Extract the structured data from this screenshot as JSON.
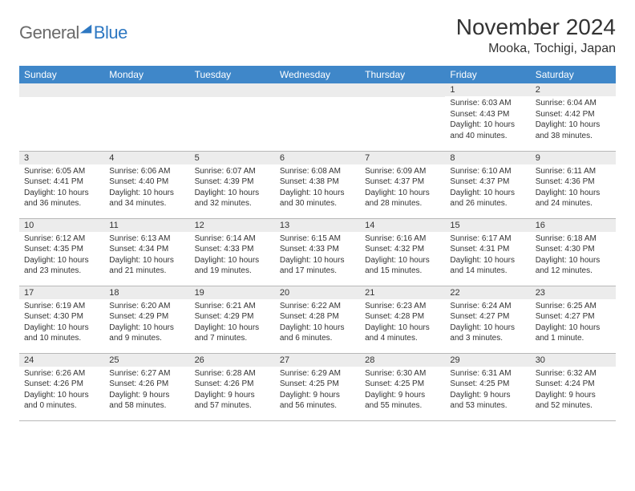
{
  "logo": {
    "part1": "General",
    "part2": "Blue"
  },
  "title": "November 2024",
  "location": "Mooka, Tochigi, Japan",
  "colors": {
    "header_bg": "#3f87c9",
    "header_text": "#ffffff",
    "daynum_bg": "#ececec",
    "text": "#333333",
    "logo_gray": "#6a6a6a",
    "logo_blue": "#2e78c2",
    "border": "#b8b8b8"
  },
  "day_headers": [
    "Sunday",
    "Monday",
    "Tuesday",
    "Wednesday",
    "Thursday",
    "Friday",
    "Saturday"
  ],
  "weeks": [
    [
      {
        "n": "",
        "sr": "",
        "ss": "",
        "dl": ""
      },
      {
        "n": "",
        "sr": "",
        "ss": "",
        "dl": ""
      },
      {
        "n": "",
        "sr": "",
        "ss": "",
        "dl": ""
      },
      {
        "n": "",
        "sr": "",
        "ss": "",
        "dl": ""
      },
      {
        "n": "",
        "sr": "",
        "ss": "",
        "dl": ""
      },
      {
        "n": "1",
        "sr": "Sunrise: 6:03 AM",
        "ss": "Sunset: 4:43 PM",
        "dl": "Daylight: 10 hours and 40 minutes."
      },
      {
        "n": "2",
        "sr": "Sunrise: 6:04 AM",
        "ss": "Sunset: 4:42 PM",
        "dl": "Daylight: 10 hours and 38 minutes."
      }
    ],
    [
      {
        "n": "3",
        "sr": "Sunrise: 6:05 AM",
        "ss": "Sunset: 4:41 PM",
        "dl": "Daylight: 10 hours and 36 minutes."
      },
      {
        "n": "4",
        "sr": "Sunrise: 6:06 AM",
        "ss": "Sunset: 4:40 PM",
        "dl": "Daylight: 10 hours and 34 minutes."
      },
      {
        "n": "5",
        "sr": "Sunrise: 6:07 AM",
        "ss": "Sunset: 4:39 PM",
        "dl": "Daylight: 10 hours and 32 minutes."
      },
      {
        "n": "6",
        "sr": "Sunrise: 6:08 AM",
        "ss": "Sunset: 4:38 PM",
        "dl": "Daylight: 10 hours and 30 minutes."
      },
      {
        "n": "7",
        "sr": "Sunrise: 6:09 AM",
        "ss": "Sunset: 4:37 PM",
        "dl": "Daylight: 10 hours and 28 minutes."
      },
      {
        "n": "8",
        "sr": "Sunrise: 6:10 AM",
        "ss": "Sunset: 4:37 PM",
        "dl": "Daylight: 10 hours and 26 minutes."
      },
      {
        "n": "9",
        "sr": "Sunrise: 6:11 AM",
        "ss": "Sunset: 4:36 PM",
        "dl": "Daylight: 10 hours and 24 minutes."
      }
    ],
    [
      {
        "n": "10",
        "sr": "Sunrise: 6:12 AM",
        "ss": "Sunset: 4:35 PM",
        "dl": "Daylight: 10 hours and 23 minutes."
      },
      {
        "n": "11",
        "sr": "Sunrise: 6:13 AM",
        "ss": "Sunset: 4:34 PM",
        "dl": "Daylight: 10 hours and 21 minutes."
      },
      {
        "n": "12",
        "sr": "Sunrise: 6:14 AM",
        "ss": "Sunset: 4:33 PM",
        "dl": "Daylight: 10 hours and 19 minutes."
      },
      {
        "n": "13",
        "sr": "Sunrise: 6:15 AM",
        "ss": "Sunset: 4:33 PM",
        "dl": "Daylight: 10 hours and 17 minutes."
      },
      {
        "n": "14",
        "sr": "Sunrise: 6:16 AM",
        "ss": "Sunset: 4:32 PM",
        "dl": "Daylight: 10 hours and 15 minutes."
      },
      {
        "n": "15",
        "sr": "Sunrise: 6:17 AM",
        "ss": "Sunset: 4:31 PM",
        "dl": "Daylight: 10 hours and 14 minutes."
      },
      {
        "n": "16",
        "sr": "Sunrise: 6:18 AM",
        "ss": "Sunset: 4:30 PM",
        "dl": "Daylight: 10 hours and 12 minutes."
      }
    ],
    [
      {
        "n": "17",
        "sr": "Sunrise: 6:19 AM",
        "ss": "Sunset: 4:30 PM",
        "dl": "Daylight: 10 hours and 10 minutes."
      },
      {
        "n": "18",
        "sr": "Sunrise: 6:20 AM",
        "ss": "Sunset: 4:29 PM",
        "dl": "Daylight: 10 hours and 9 minutes."
      },
      {
        "n": "19",
        "sr": "Sunrise: 6:21 AM",
        "ss": "Sunset: 4:29 PM",
        "dl": "Daylight: 10 hours and 7 minutes."
      },
      {
        "n": "20",
        "sr": "Sunrise: 6:22 AM",
        "ss": "Sunset: 4:28 PM",
        "dl": "Daylight: 10 hours and 6 minutes."
      },
      {
        "n": "21",
        "sr": "Sunrise: 6:23 AM",
        "ss": "Sunset: 4:28 PM",
        "dl": "Daylight: 10 hours and 4 minutes."
      },
      {
        "n": "22",
        "sr": "Sunrise: 6:24 AM",
        "ss": "Sunset: 4:27 PM",
        "dl": "Daylight: 10 hours and 3 minutes."
      },
      {
        "n": "23",
        "sr": "Sunrise: 6:25 AM",
        "ss": "Sunset: 4:27 PM",
        "dl": "Daylight: 10 hours and 1 minute."
      }
    ],
    [
      {
        "n": "24",
        "sr": "Sunrise: 6:26 AM",
        "ss": "Sunset: 4:26 PM",
        "dl": "Daylight: 10 hours and 0 minutes."
      },
      {
        "n": "25",
        "sr": "Sunrise: 6:27 AM",
        "ss": "Sunset: 4:26 PM",
        "dl": "Daylight: 9 hours and 58 minutes."
      },
      {
        "n": "26",
        "sr": "Sunrise: 6:28 AM",
        "ss": "Sunset: 4:26 PM",
        "dl": "Daylight: 9 hours and 57 minutes."
      },
      {
        "n": "27",
        "sr": "Sunrise: 6:29 AM",
        "ss": "Sunset: 4:25 PM",
        "dl": "Daylight: 9 hours and 56 minutes."
      },
      {
        "n": "28",
        "sr": "Sunrise: 6:30 AM",
        "ss": "Sunset: 4:25 PM",
        "dl": "Daylight: 9 hours and 55 minutes."
      },
      {
        "n": "29",
        "sr": "Sunrise: 6:31 AM",
        "ss": "Sunset: 4:25 PM",
        "dl": "Daylight: 9 hours and 53 minutes."
      },
      {
        "n": "30",
        "sr": "Sunrise: 6:32 AM",
        "ss": "Sunset: 4:24 PM",
        "dl": "Daylight: 9 hours and 52 minutes."
      }
    ]
  ]
}
